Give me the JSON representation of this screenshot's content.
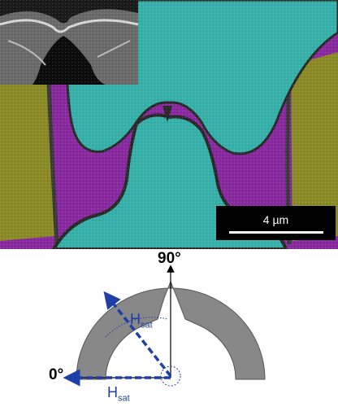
{
  "micrograph": {
    "scale_bar_text": "4 µm",
    "colors": {
      "center_electrode": "#36b0a8",
      "magnetic_ring": "#8a2aa0",
      "side_pads": "#8a8a26",
      "trench": "#3a3a3a"
    }
  },
  "diagram": {
    "angle_90_label": "90°",
    "angle_0_label": "0°",
    "field_label_main": "H",
    "field_label_sub": "sat",
    "colors": {
      "ring": "#888888",
      "arrows": "#1f3fa8"
    }
  }
}
